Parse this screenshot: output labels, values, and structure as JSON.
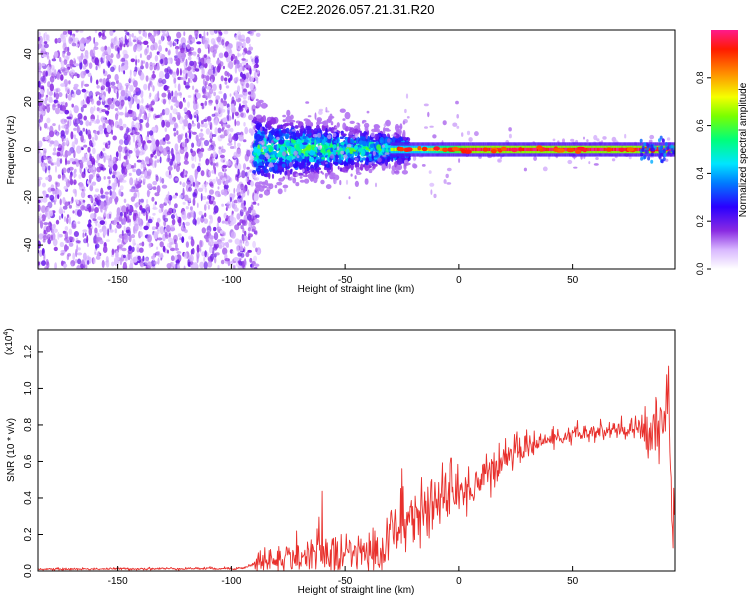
{
  "title": "C2E2.2026.057.21.31.R20",
  "chart_data": [
    {
      "type": "heatmap",
      "name": "spectrogram",
      "xlabel": "Height of straight line (km)",
      "ylabel": "Frequency (Hz)",
      "xlim": [
        -185,
        95
      ],
      "ylim": [
        -50,
        50
      ],
      "x_ticks": [
        -150,
        -100,
        -50,
        0,
        50
      ],
      "y_ticks": [
        -40,
        -20,
        0,
        20,
        40
      ],
      "colorbar": {
        "label": "Normalized spectral amplitude",
        "range": [
          0,
          1
        ],
        "ticks": [
          0.0,
          0.2,
          0.4,
          0.6,
          0.8
        ],
        "tick_labels": [
          "0.0",
          "0.2",
          "0.4",
          "0.6",
          "0.8"
        ]
      },
      "regions": [
        {
          "x_range": [
            -185,
            -88
          ],
          "freq_spread": 50,
          "amplitude": 0.05,
          "note": "scattered low-amplitude noise"
        },
        {
          "x_range": [
            -88,
            -25
          ],
          "freq_spread": 15,
          "amplitude": 0.35,
          "note": "clustered blobs around 0 Hz"
        },
        {
          "x_range": [
            -25,
            95
          ],
          "freq_spread": 2,
          "amplitude": 0.95,
          "note": "narrow band at 0 Hz"
        }
      ]
    },
    {
      "type": "line",
      "name": "snr",
      "xlabel": "Height of straight line (km)",
      "ylabel": "SNR (10 * v/v)",
      "y_multiplier": "(x10",
      "y_exponent": "4",
      "y_multiplier_close": ")",
      "xlim": [
        -185,
        95
      ],
      "ylim": [
        0,
        1.32
      ],
      "x_ticks": [
        -150,
        -100,
        -50,
        0,
        50
      ],
      "y_ticks": [
        0.0,
        0.2,
        0.4,
        0.6,
        0.8,
        1.0,
        1.2
      ],
      "y_tick_labels": [
        "0.0",
        "0.2",
        "0.4",
        "0.6",
        "0.8",
        "1.0",
        "1.2"
      ],
      "color": "#e8302c",
      "trend": [
        {
          "x": -185,
          "y": 0.01
        },
        {
          "x": -95,
          "y": 0.015
        },
        {
          "x": -88,
          "y": 0.05
        },
        {
          "x": -60,
          "y": 0.09
        },
        {
          "x": -35,
          "y": 0.1
        },
        {
          "x": -30,
          "y": 0.2
        },
        {
          "x": -20,
          "y": 0.3
        },
        {
          "x": -10,
          "y": 0.38
        },
        {
          "x": 0,
          "y": 0.42
        },
        {
          "x": 10,
          "y": 0.5
        },
        {
          "x": 20,
          "y": 0.62
        },
        {
          "x": 30,
          "y": 0.68
        },
        {
          "x": 40,
          "y": 0.72
        },
        {
          "x": 50,
          "y": 0.74
        },
        {
          "x": 60,
          "y": 0.76
        },
        {
          "x": 75,
          "y": 0.77
        },
        {
          "x": 85,
          "y": 0.78
        },
        {
          "x": 90,
          "y": 0.8
        },
        {
          "x": 92,
          "y": 1.05
        },
        {
          "x": 94,
          "y": 0.3
        }
      ],
      "noise_amplitude": [
        {
          "x": -185,
          "a": 0.003
        },
        {
          "x": -90,
          "a": 0.004
        },
        {
          "x": -88,
          "a": 0.04
        },
        {
          "x": -35,
          "a": 0.07
        },
        {
          "x": -25,
          "a": 0.1
        },
        {
          "x": 20,
          "a": 0.05
        },
        {
          "x": 40,
          "a": 0.02
        },
        {
          "x": 80,
          "a": 0.04
        },
        {
          "x": 95,
          "a": 0.15
        }
      ]
    }
  ]
}
